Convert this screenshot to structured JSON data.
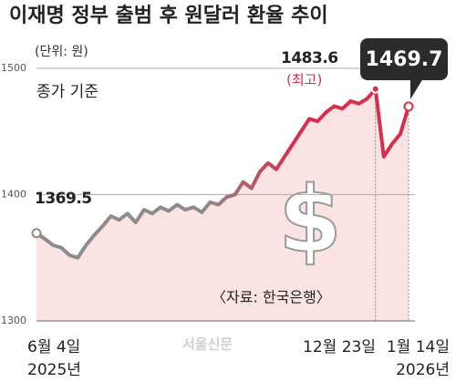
{
  "chart_data": {
    "type": "line",
    "title": "이재명 정부 출범 후 원달러 환율 추이",
    "categories": [
      "6월 4일",
      null,
      null,
      null,
      null,
      null,
      null,
      null,
      null,
      null,
      null,
      null,
      null,
      null,
      null,
      null,
      null,
      null,
      null,
      null,
      null,
      null,
      null,
      null,
      null,
      null,
      null,
      null,
      null,
      null,
      null,
      null,
      null,
      null,
      null,
      null,
      null,
      null,
      null,
      null,
      null,
      "12월 23일",
      null,
      null,
      null,
      "1월 14일"
    ],
    "series": [
      {
        "name": "원달러 환율",
        "color": "#d5304a",
        "start_color": "#8c8c8c",
        "values": [
          1369.5,
          1365,
          1360,
          1358,
          1352,
          1350,
          1360,
          1368,
          1375,
          1383,
          1380,
          1385,
          1378,
          1388,
          1385,
          1390,
          1387,
          1392,
          1388,
          1390,
          1386,
          1394,
          1392,
          1398,
          1400,
          1410,
          1405,
          1418,
          1425,
          1420,
          1430,
          1440,
          1450,
          1460,
          1458,
          1465,
          1470,
          1468,
          1474,
          1472,
          1476,
          1483.6,
          1430,
          1440,
          1448,
          1469.7
        ]
      }
    ],
    "fill_color": "#fbe3e3",
    "ylim": [
      1300,
      1510
    ],
    "yticks": [
      1300,
      1400,
      1500
    ],
    "grid": true,
    "annotations": {
      "unit": "(단위: 원)",
      "basis": "종가 기준",
      "peak_note": "(최고)",
      "source": "〈자료: 한국은행〉",
      "watermark": "서울신문",
      "symbol": "$",
      "year_start": "2025년",
      "year_end": "2026년"
    }
  }
}
